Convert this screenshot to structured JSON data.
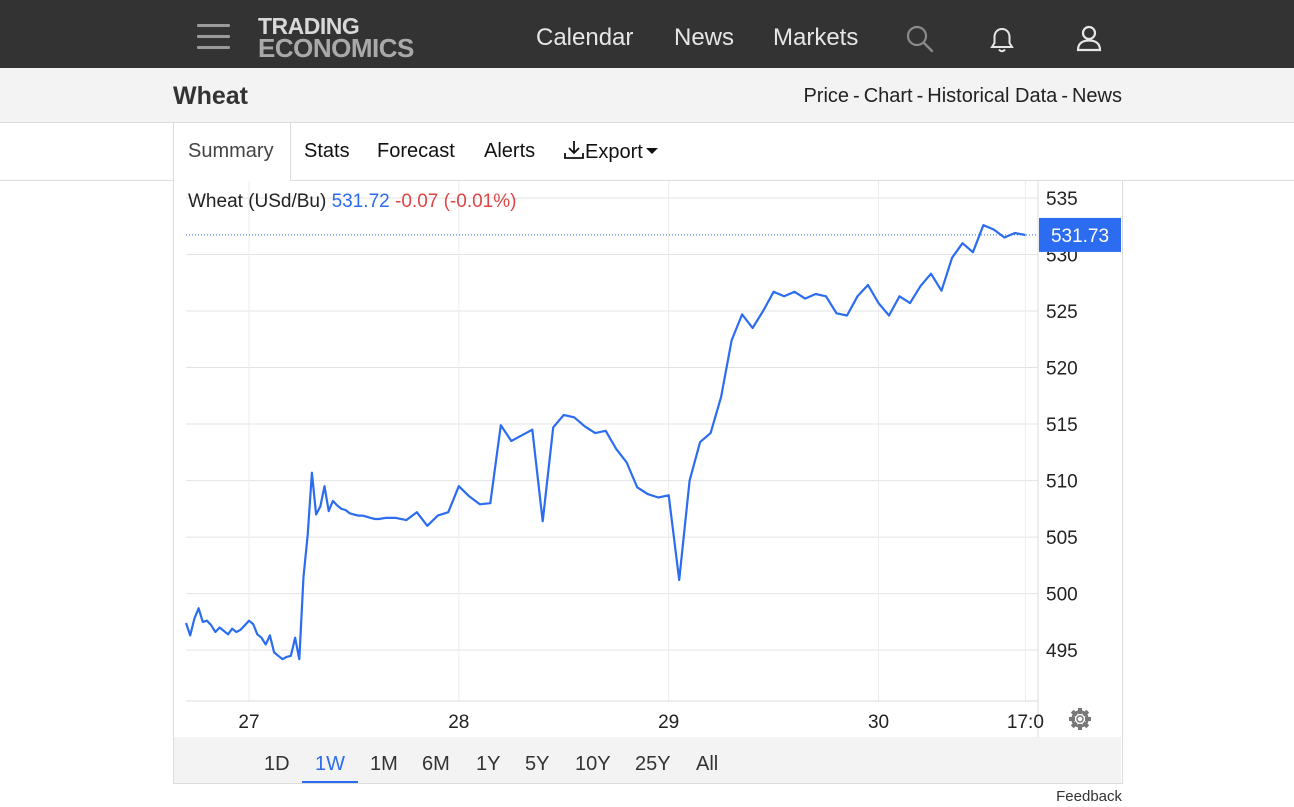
{
  "header": {
    "logo_line1": "TRADING",
    "logo_line2": "ECONOMICS",
    "nav": [
      "Calendar",
      "News",
      "Markets"
    ],
    "icons": [
      "menu-icon",
      "search-icon",
      "bell-icon",
      "user-icon"
    ]
  },
  "subheader": {
    "title": "Wheat",
    "links": [
      "Price",
      "Chart",
      "Historical Data",
      "News"
    ],
    "separator": "-"
  },
  "tabs": {
    "items": [
      "Summary",
      "Stats",
      "Forecast",
      "Alerts"
    ],
    "export_label": "Export",
    "active": "Summary"
  },
  "quote": {
    "label": "Wheat (USd/Bu)",
    "price": "531.72",
    "change": "-0.07",
    "change_pct": "(-0.01%)"
  },
  "ranges": {
    "items": [
      "1D",
      "1W",
      "1M",
      "6M",
      "1Y",
      "5Y",
      "10Y",
      "25Y",
      "All"
    ],
    "active": "1W"
  },
  "feedback_label": "Feedback",
  "colors": {
    "line": "#2b6cf0",
    "negative": "#e04545",
    "price_tag_bg": "#2b6cf0",
    "topbar": "#333333"
  },
  "chart_data": {
    "type": "line",
    "title": "",
    "xlabel": "",
    "ylabel": "",
    "x_tick_labels": [
      "27",
      "28",
      "29",
      "30",
      "17:0"
    ],
    "x_ticks": [
      26.3,
      27.3,
      28.3,
      29.3,
      30.0
    ],
    "xlim": [
      26.0,
      30.06
    ],
    "y_ticks": [
      495,
      500,
      505,
      510,
      515,
      520,
      525,
      530,
      535
    ],
    "y_tick_labels": [
      "495",
      "500",
      "505",
      "510",
      "515",
      "520",
      "525",
      "530",
      "535"
    ],
    "ylim": [
      490.5,
      536.5
    ],
    "last_price_label": "531.73",
    "last_price": 531.73,
    "grid": true,
    "series": [
      {
        "x": [
          26.0,
          26.02,
          26.04,
          26.06,
          26.08,
          26.1,
          26.12,
          26.14,
          26.16,
          26.18,
          26.2,
          26.22,
          26.24,
          26.26,
          26.28,
          26.3,
          26.32,
          26.34,
          26.36,
          26.38,
          26.4,
          26.42,
          26.44,
          26.46,
          26.48,
          26.5,
          26.52,
          26.54,
          26.56,
          26.58,
          26.6,
          26.62,
          26.64,
          26.66,
          26.68,
          26.7,
          26.72,
          26.74,
          26.76,
          26.78,
          26.8,
          26.82,
          26.84,
          26.86,
          26.88,
          26.9,
          26.92,
          26.95,
          27.0,
          27.05,
          27.1,
          27.15,
          27.2,
          27.25,
          27.3,
          27.35,
          27.4,
          27.45,
          27.5,
          27.55,
          27.6,
          27.65,
          27.7,
          27.75,
          27.8,
          27.85,
          27.9,
          27.95,
          28.0,
          28.05,
          28.1,
          28.15,
          28.2,
          28.25,
          28.3,
          28.35,
          28.4,
          28.45,
          28.5,
          28.55,
          28.6,
          28.65,
          28.7,
          28.75,
          28.8,
          28.85,
          28.9,
          28.95,
          29.0,
          29.05,
          29.1,
          29.15,
          29.2,
          29.25,
          29.3,
          29.35,
          29.4,
          29.45,
          29.5,
          29.55,
          29.6,
          29.65,
          29.7,
          29.75,
          29.8,
          29.85,
          29.9,
          29.95,
          30.0
        ],
        "values": [
          497.4,
          496.3,
          497.8,
          498.7,
          497.5,
          497.6,
          497.2,
          496.6,
          497.0,
          496.7,
          496.4,
          496.9,
          496.6,
          496.8,
          497.2,
          497.6,
          497.3,
          496.4,
          496.1,
          495.5,
          496.3,
          494.8,
          494.5,
          494.2,
          494.4,
          494.5,
          496.1,
          494.2,
          501.5,
          505.2,
          510.7,
          507.0,
          507.7,
          509.5,
          507.3,
          508.2,
          507.8,
          507.5,
          507.4,
          507.1,
          507.0,
          506.9,
          506.9,
          506.8,
          506.7,
          506.6,
          506.6,
          506.7,
          506.7,
          506.5,
          507.2,
          506.0,
          506.9,
          507.2,
          509.5,
          508.6,
          507.9,
          508.0,
          514.9,
          513.5,
          514.0,
          514.5,
          506.4,
          514.7,
          515.8,
          515.6,
          514.8,
          514.2,
          514.4,
          512.8,
          511.6,
          509.4,
          508.8,
          508.5,
          508.7,
          501.2,
          510.0,
          513.4,
          514.2,
          517.4,
          522.4,
          524.7,
          523.5,
          525.0,
          526.7,
          526.3,
          526.7,
          526.1,
          526.5,
          526.3,
          524.8,
          524.6,
          526.3,
          527.3,
          525.7,
          524.6,
          526.3,
          525.7,
          527.2,
          528.3,
          526.8,
          529.7,
          531.0,
          530.2,
          532.6,
          532.2,
          531.5,
          531.9,
          531.72
        ]
      }
    ]
  }
}
